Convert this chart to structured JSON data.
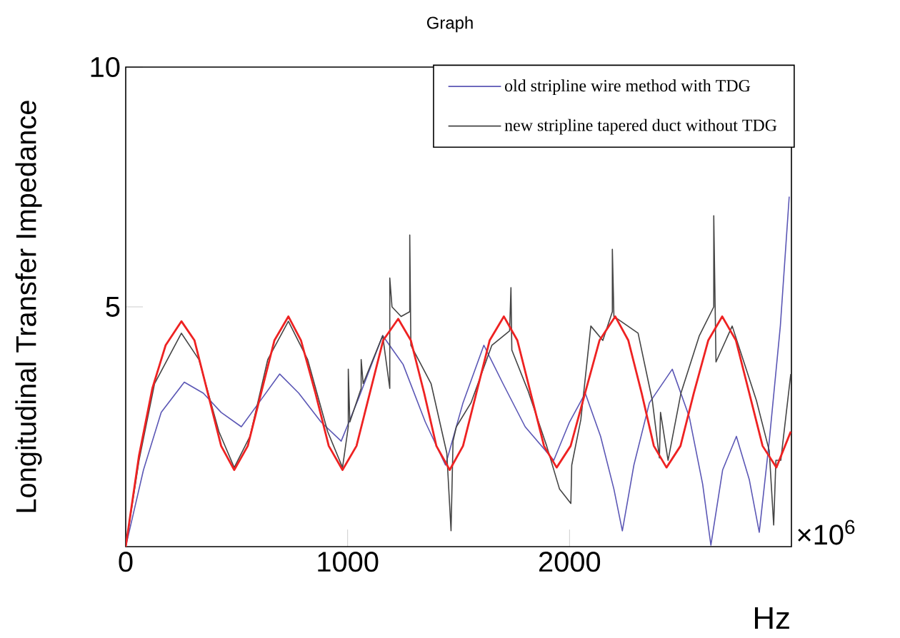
{
  "chart_data": {
    "type": "line",
    "title": "Graph",
    "xlabel": "Hz",
    "ylabel": "Longitudinal Transfer Impedance",
    "annotations": [
      "×10$^{6}$"
    ],
    "xlim": [
      0,
      3000
    ],
    "ylim": [
      0,
      10
    ],
    "xticks": [
      0,
      1000,
      2000
    ],
    "yticks": [
      5,
      10
    ],
    "legend": "top right",
    "series": [
      {
        "name": "old stripline wire method with TDG",
        "color": "#5b57b5",
        "x": [
          0,
          80,
          160,
          264,
          350,
          430,
          521,
          600,
          694,
          780,
          880,
          971,
          1050,
          1158,
          1250,
          1350,
          1441,
          1520,
          1614,
          1700,
          1800,
          1929,
          2000,
          2071,
          2140,
          2200,
          2238,
          2290,
          2360,
          2463,
          2540,
          2600,
          2637,
          2690,
          2752,
          2810,
          2855,
          2900,
          2950,
          2990
        ],
        "values": [
          0,
          1.6,
          2.8,
          3.43,
          3.2,
          2.8,
          2.5,
          3.0,
          3.6,
          3.2,
          2.6,
          2.2,
          3.1,
          4.4,
          3.8,
          2.6,
          1.7,
          3.0,
          4.2,
          3.4,
          2.5,
          1.8,
          2.6,
          3.2,
          2.3,
          1.2,
          0.33,
          1.7,
          3.0,
          3.7,
          2.7,
          1.3,
          0.03,
          1.6,
          2.3,
          1.4,
          0.3,
          2.2,
          4.6,
          7.3
        ]
      },
      {
        "name": "new stripline tapered duct without TDG",
        "color": "#444444",
        "x": [
          0,
          60,
          130,
          251,
          330,
          420,
          489,
          560,
          640,
          733,
          820,
          910,
          977,
          1003,
          1003,
          1010,
          1061,
          1061,
          1070,
          1158,
          1190,
          1190,
          1200,
          1241,
          1280,
          1280,
          1285,
          1376,
          1447,
          1466,
          1475,
          1490,
          1556,
          1650,
          1730,
          1736,
          1740,
          1813,
          1897,
          1955,
          2006,
          2010,
          2051,
          2096,
          2150,
          2193,
          2193,
          2200,
          2309,
          2373,
          2405,
          2410,
          2444,
          2502,
          2585,
          2650,
          2650,
          2660,
          2733,
          2842,
          2900,
          2920,
          2930,
          2952,
          2997
        ],
        "values": [
          0,
          1.8,
          3.4,
          4.45,
          3.9,
          2.4,
          1.65,
          2.3,
          3.9,
          4.7,
          3.9,
          2.4,
          1.65,
          2.5,
          3.7,
          2.6,
          3.3,
          3.9,
          3.4,
          4.4,
          3.3,
          5.6,
          5.0,
          4.8,
          4.9,
          6.5,
          4.2,
          3.4,
          1.95,
          0.33,
          2.2,
          2.5,
          3.0,
          4.2,
          4.5,
          5.4,
          4.1,
          3.25,
          2.1,
          1.2,
          0.9,
          1.7,
          2.65,
          4.6,
          4.3,
          4.9,
          6.2,
          4.8,
          4.45,
          3.05,
          1.85,
          2.8,
          1.8,
          3.2,
          4.4,
          5.0,
          6.9,
          3.85,
          4.6,
          3.05,
          2.0,
          0.45,
          1.8,
          1.8,
          3.6
        ]
      },
      {
        "color": "#ee2222",
        "x": [
          0,
          60,
          120,
          180,
          251,
          310,
          370,
          430,
          489,
          550,
          610,
          670,
          733,
          790,
          855,
          915,
          977,
          1040,
          1100,
          1160,
          1228,
          1285,
          1345,
          1400,
          1460,
          1520,
          1580,
          1640,
          1704,
          1765,
          1825,
          1885,
          1942,
          2005,
          2070,
          2135,
          2206,
          2265,
          2325,
          2380,
          2437,
          2500,
          2560,
          2625,
          2688,
          2750,
          2810,
          2870,
          2932,
          2997
        ],
        "values": [
          0,
          1.9,
          3.3,
          4.2,
          4.7,
          4.3,
          3.2,
          2.1,
          1.6,
          2.1,
          3.2,
          4.3,
          4.8,
          4.3,
          3.2,
          2.1,
          1.6,
          2.1,
          3.2,
          4.3,
          4.75,
          4.3,
          3.2,
          2.1,
          1.6,
          2.1,
          3.2,
          4.3,
          4.8,
          4.3,
          3.2,
          2.1,
          1.65,
          2.1,
          3.2,
          4.3,
          4.8,
          4.3,
          3.2,
          2.1,
          1.65,
          2.1,
          3.2,
          4.3,
          4.8,
          4.3,
          3.2,
          2.1,
          1.65,
          2.4
        ]
      }
    ]
  }
}
